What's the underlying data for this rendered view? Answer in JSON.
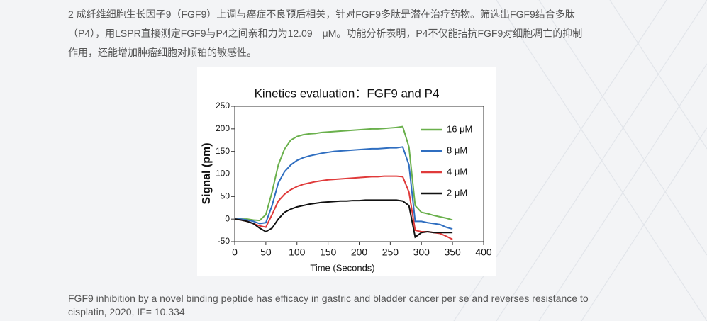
{
  "paragraph": [
    "2  成纤维细胞生长因子9（FGF9）上调与癌症不良预后相关，针对FGF9多肽是潜在治疗药物。筛选出FGF9结合多肽",
    "（P4），用LSPR直接测定FGF9与P4之间亲和力为12.09　μM。功能分析表明，P4不仅能拮抗FGF9对细胞凋亡的抑制",
    "作用，还能增加肿瘤细胞对顺铂的敏感性。"
  ],
  "caption": [
    "FGF9 inhibition by a novel binding peptide has efficacy in gastric and bladder cancer per se and reverses resistance to",
    "cisplatin, 2020, IF= 10.334"
  ],
  "chart_data": {
    "type": "line",
    "title": "Kinetics evaluation：FGF9 and P4",
    "x_label": "Time (Seconds)",
    "y_label": "Signal (pm)",
    "x": [
      0,
      10,
      20,
      30,
      40,
      50,
      60,
      70,
      80,
      90,
      100,
      110,
      120,
      130,
      140,
      150,
      160,
      170,
      180,
      190,
      200,
      210,
      220,
      230,
      240,
      250,
      260,
      270,
      280,
      290,
      300,
      310,
      320,
      330,
      340,
      350
    ],
    "series": [
      {
        "name": "16 μM",
        "color": "#6ab04c",
        "values": [
          0,
          0,
          0,
          -2,
          -3,
          10,
          60,
          120,
          155,
          175,
          183,
          187,
          189,
          190,
          192,
          193,
          194,
          195,
          196,
          197,
          198,
          199,
          200,
          200,
          201,
          202,
          203,
          205,
          160,
          30,
          15,
          12,
          8,
          5,
          2,
          -2
        ]
      },
      {
        "name": "8 μM",
        "color": "#2f6ec0",
        "values": [
          0,
          0,
          -2,
          -5,
          -10,
          -8,
          30,
          80,
          105,
          120,
          130,
          136,
          140,
          143,
          146,
          148,
          150,
          151,
          152,
          153,
          154,
          155,
          156,
          156,
          157,
          158,
          158,
          160,
          120,
          -5,
          -5,
          -8,
          -10,
          -12,
          -18,
          -22
        ]
      },
      {
        "name": "4 μM",
        "color": "#e03a3a",
        "values": [
          0,
          -2,
          -5,
          -10,
          -15,
          -18,
          10,
          40,
          55,
          65,
          72,
          77,
          80,
          83,
          85,
          87,
          88,
          89,
          90,
          91,
          92,
          93,
          94,
          94,
          95,
          95,
          95,
          94,
          60,
          -25,
          -28,
          -28,
          -30,
          -32,
          -38,
          -45
        ]
      },
      {
        "name": "2 μM",
        "color": "#111111",
        "values": [
          0,
          -2,
          -5,
          -10,
          -20,
          -28,
          -20,
          0,
          15,
          22,
          27,
          30,
          33,
          35,
          37,
          38,
          39,
          40,
          40,
          41,
          41,
          42,
          42,
          42,
          42,
          42,
          42,
          40,
          30,
          -40,
          -30,
          -28,
          -30,
          -30,
          -30,
          -30
        ]
      }
    ],
    "xlim": [
      0,
      400
    ],
    "xticks": [
      0,
      50,
      100,
      150,
      200,
      250,
      300,
      350,
      400
    ],
    "ylim": [
      -50,
      250
    ],
    "yticks": [
      -50,
      0,
      50,
      100,
      150,
      200,
      250
    ],
    "legend": "upper right"
  }
}
